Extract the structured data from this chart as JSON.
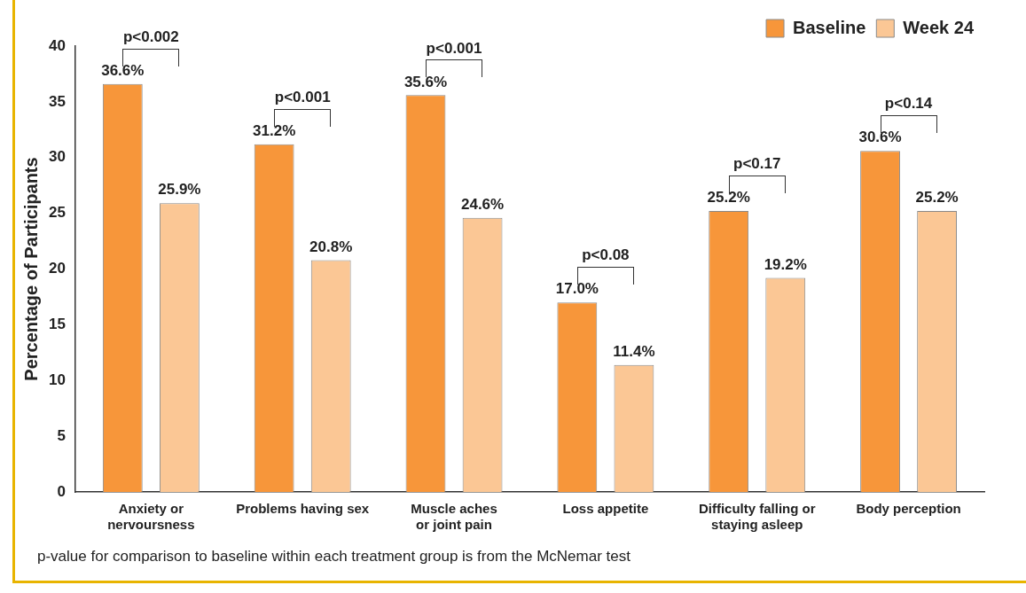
{
  "chart_data": {
    "type": "bar",
    "ylabel": "Percentage of Participants",
    "categories": [
      "Anxiety or\nnervoursness",
      "Problems having sex",
      "Muscle aches\nor joint pain",
      "Loss appetite",
      "Difficulty falling or\nstaying asleep",
      "Body perception"
    ],
    "series": [
      {
        "name": "Baseline",
        "color": "#f7963a",
        "values": [
          36.6,
          31.2,
          35.6,
          17.0,
          25.2,
          30.6
        ],
        "value_labels": [
          "36.6%",
          "31.2%",
          "35.6%",
          "17.0%",
          "25.2%",
          "30.6%"
        ]
      },
      {
        "name": "Week 24",
        "color": "#fbc795",
        "values": [
          25.9,
          20.8,
          24.6,
          11.4,
          19.2,
          25.2
        ],
        "value_labels": [
          "25.9%",
          "20.8%",
          "24.6%",
          "11.4%",
          "19.2%",
          "25.2%"
        ]
      }
    ],
    "ylim": [
      0,
      40
    ],
    "yticks": [
      0,
      5,
      10,
      15,
      20,
      25,
      30,
      35,
      40
    ],
    "grid": false,
    "legend": "top right",
    "annotations": [
      "p<0.002",
      "p<0.001",
      "p<0.001",
      "p<0.08",
      "p<0.17",
      "p<0.14",
      "p-value for comparison to baseline within each treatment group is from the McNemar test"
    ]
  }
}
